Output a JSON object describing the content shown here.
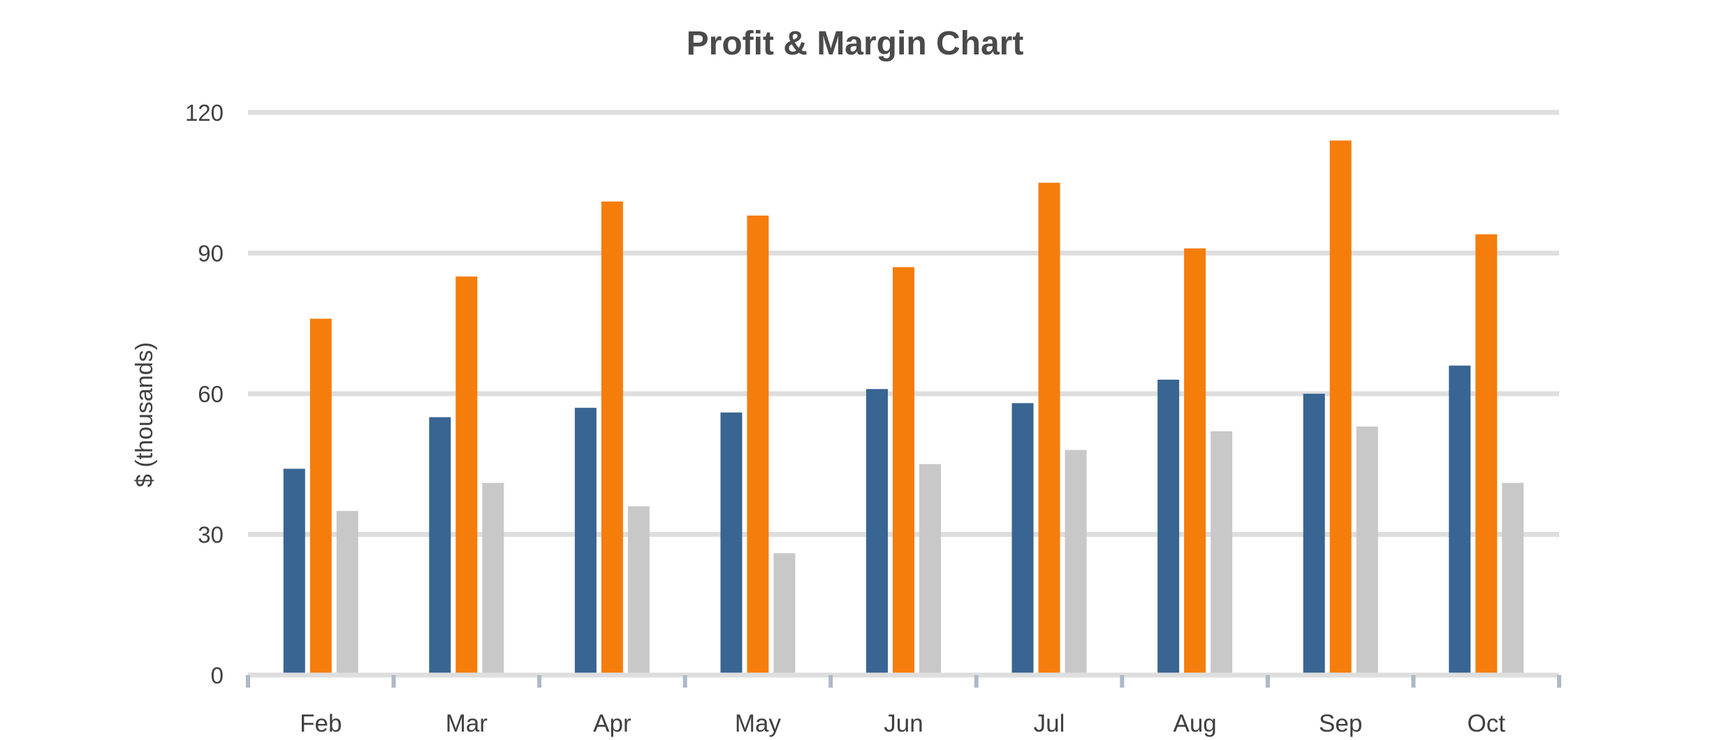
{
  "chart_data": {
    "type": "bar",
    "title": "Profit & Margin Chart",
    "xlabel": "",
    "ylabel": "$ (thousands)",
    "ylim": [
      0,
      120
    ],
    "yticks": [
      0,
      30,
      60,
      90,
      120
    ],
    "grid": true,
    "legend": "none",
    "categories": [
      "Feb",
      "Mar",
      "Apr",
      "May",
      "Jun",
      "Jul",
      "Aug",
      "Sep",
      "Oct"
    ],
    "series": [
      {
        "color": "#386592",
        "values": [
          44,
          55,
          57,
          56,
          61,
          58,
          63,
          60,
          66
        ]
      },
      {
        "color": "#F57D0C",
        "values": [
          76,
          85,
          101,
          98,
          87,
          105,
          91,
          114,
          94
        ]
      },
      {
        "color": "#C8C8C8",
        "values": [
          35,
          41,
          36,
          26,
          45,
          48,
          52,
          53,
          41
        ]
      }
    ],
    "colors": {
      "grid": "#DEDEDE",
      "axis": "#AEB9C6",
      "text": "#404040",
      "title": "#4A4A4A"
    }
  }
}
